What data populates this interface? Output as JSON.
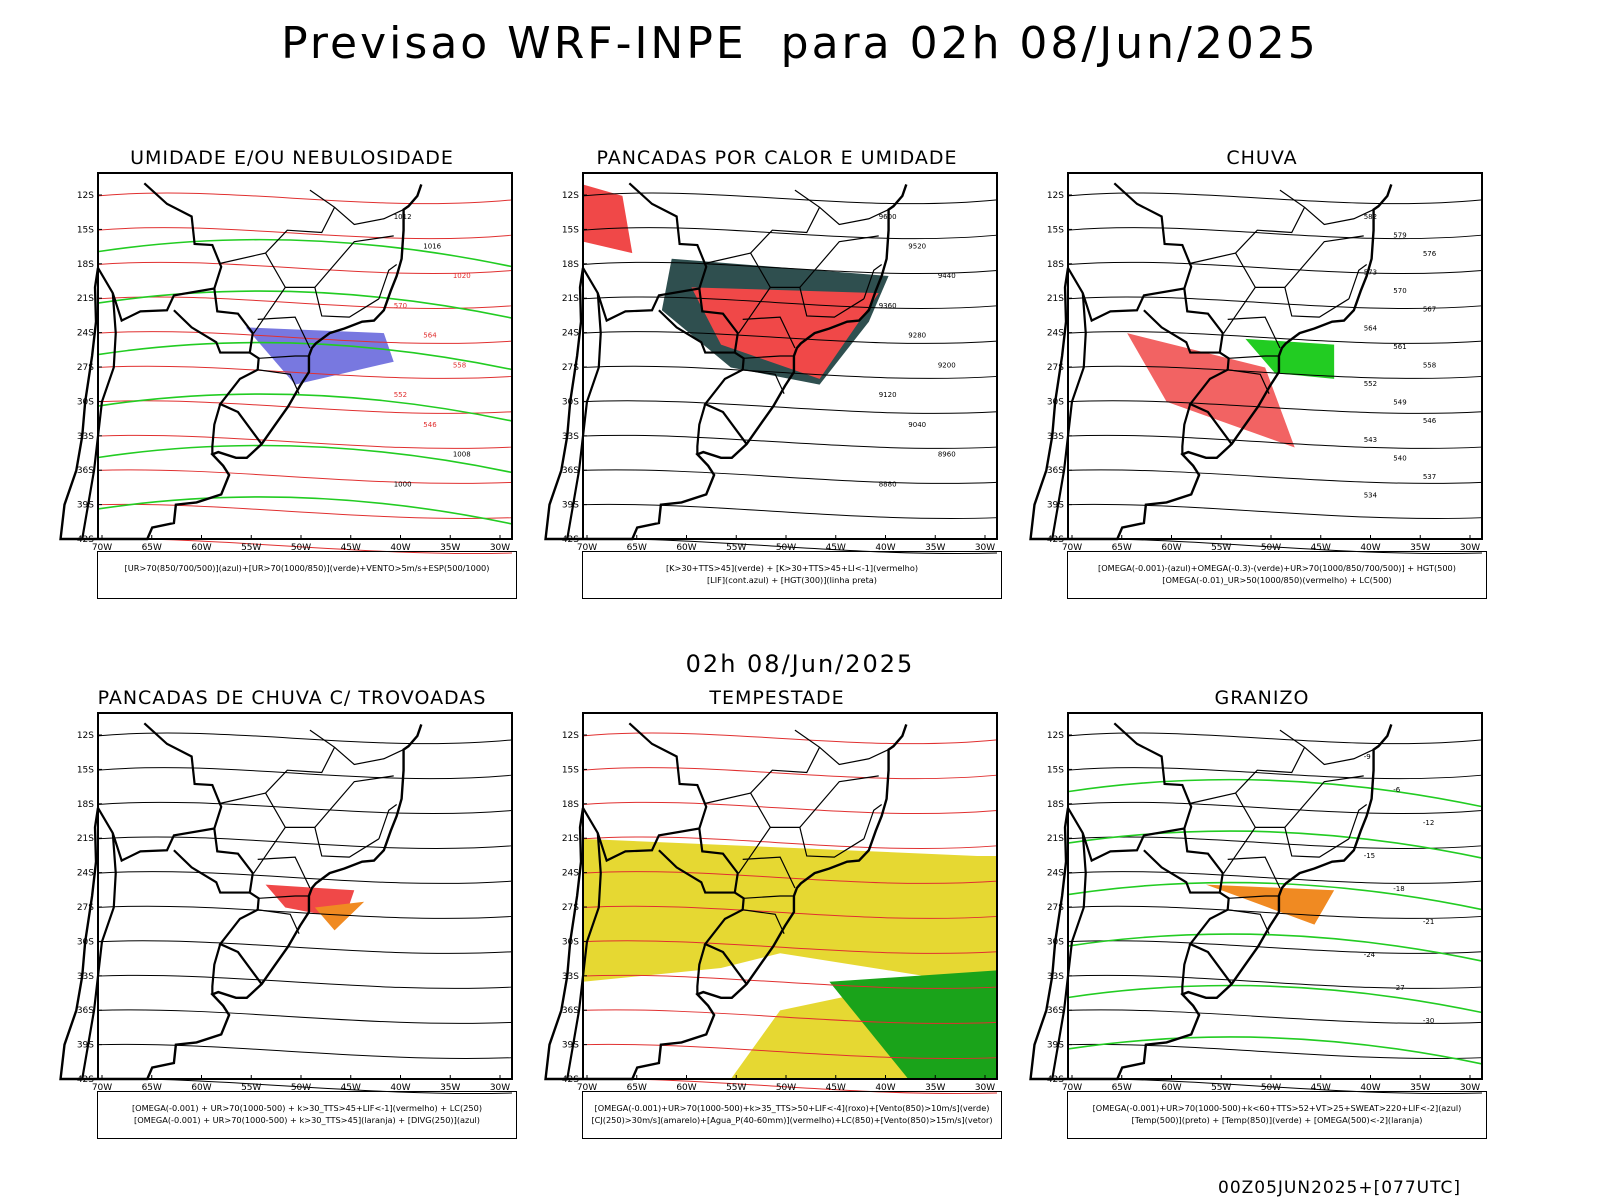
{
  "header": {
    "title": "Previsao WRF-INPE  para 02h 08/Jun/2025",
    "mid_time": "02h 08/Jun/2025",
    "footer": "00Z05JUN2025+[077UTC]"
  },
  "axes": {
    "lat_labels": [
      "12S",
      "15S",
      "18S",
      "21S",
      "24S",
      "27S",
      "30S",
      "33S",
      "36S",
      "39S",
      "42S"
    ],
    "lon_labels": [
      "70W",
      "65W",
      "60W",
      "55W",
      "50W",
      "45W",
      "40W",
      "35W",
      "30W"
    ]
  },
  "chart_data": [
    {
      "type": "map",
      "title": "UMIDADE E/OU NEBULOSIDADE",
      "legend": [
        "[UR>70(850/700/500)](azul)+[UR>70(1000/850)](verde)+VENTO>5m/s+ESP(500/1000)"
      ],
      "contour_labels": [
        "1012",
        "1016",
        "1020",
        "570",
        "564",
        "558",
        "552",
        "546",
        "1008",
        "1000"
      ]
    },
    {
      "type": "map",
      "title": "PANCADAS POR CALOR E UMIDADE",
      "legend": [
        "[K>30+TTS>45](verde) + [K>30+TTS>45+LI<-1](vermelho)",
        "[LIF](cont.azul) + [HGT(300)](linha preta)"
      ],
      "contour_labels": [
        "9600",
        "9520",
        "9440",
        "9360",
        "9280",
        "9200",
        "9120",
        "9040",
        "8960",
        "8880"
      ]
    },
    {
      "type": "map",
      "title": "CHUVA",
      "legend": [
        "[OMEGA(-0.001)-(azul)+OMEGA(-0.3)-(verde)+UR>70(1000/850/700/500)] + HGT(500)",
        "[OMEGA(-0.01)_UR>50(1000/850)(vermelho) + LC(500)"
      ],
      "contour_labels": [
        "582",
        "579",
        "576",
        "573",
        "570",
        "567",
        "564",
        "561",
        "558",
        "552",
        "549",
        "546",
        "543",
        "540",
        "537",
        "534"
      ]
    },
    {
      "type": "map",
      "title": "PANCADAS DE CHUVA C/ TROVOADAS",
      "legend": [
        "[OMEGA(-0.001) + UR>70(1000-500) + k>30_TTS>45+LIF<-1](vermelho) + LC(250)",
        "[OMEGA(-0.001) + UR>70(1000-500) + k>30_TTS>45](laranja) + [DIVG(250)](azul)"
      ],
      "contour_labels": []
    },
    {
      "type": "map",
      "title": "TEMPESTADE",
      "legend": [
        "[OMEGA(-0.001)+UR>70(1000-500)+k>35_TTS>50+LIF<-4](roxo)+[Vento(850)>10m/s](verde)",
        "[CJ(250)>30m/s](amarelo)+[Agua_P(40-60mm)](vermelho)+LC(850)+[Vento(850)>15m/s](vetor)"
      ],
      "contour_labels": []
    },
    {
      "type": "map",
      "title": "GRANIZO",
      "legend": [
        "[OMEGA(-0.001)+UR>70(1000-500)+k<60+TTS>52+VT>25+SWEAT>220+LIF<-2](azul)",
        "[Temp(500)](preto) + [Temp(850)](verde) + [OMEGA(500)<-2](laranja)"
      ],
      "contour_labels": [
        "-9",
        "-6",
        "-12",
        "-15",
        "-18",
        "-21",
        "-24",
        "-27",
        "-30"
      ]
    }
  ]
}
